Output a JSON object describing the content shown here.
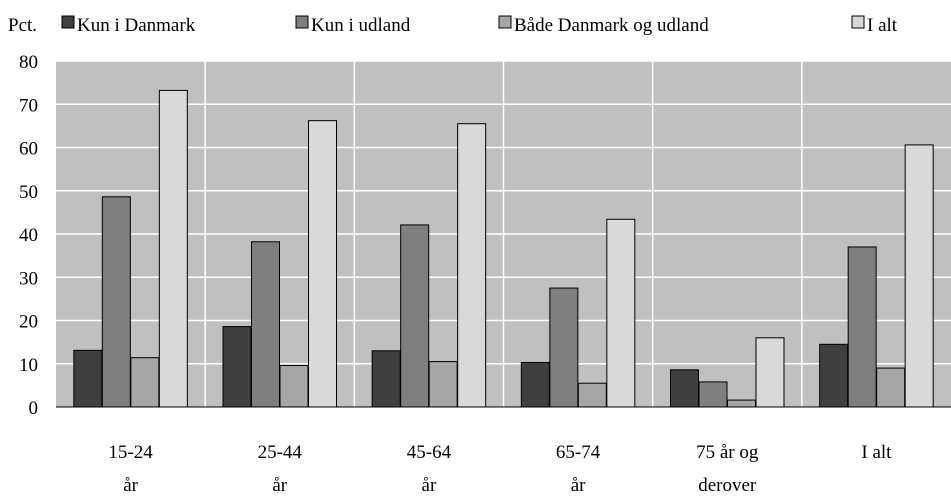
{
  "chart_data": {
    "type": "bar",
    "ylabel": "Pct.",
    "ylim": [
      0,
      80
    ],
    "yticks": [
      0,
      10,
      20,
      30,
      40,
      50,
      60,
      70,
      80
    ],
    "grid": true,
    "legend_position": "top",
    "categories": [
      [
        "15-24",
        "år"
      ],
      [
        "25-44",
        "år"
      ],
      [
        "45-64",
        "år"
      ],
      [
        "65-74",
        "år"
      ],
      [
        "75 år og",
        "derover"
      ],
      [
        "I alt"
      ]
    ],
    "series": [
      {
        "name": "Kun i Danmark",
        "color": "#3f3f3f",
        "values": [
          13.1,
          18.6,
          13.0,
          10.3,
          8.6,
          14.5
        ]
      },
      {
        "name": "Kun i udland",
        "color": "#7f7f7f",
        "values": [
          48.6,
          38.2,
          42.1,
          27.5,
          5.8,
          37.0
        ]
      },
      {
        "name": "Både Danmark og udland",
        "color": "#a6a6a6",
        "values": [
          11.4,
          9.6,
          10.5,
          5.5,
          1.6,
          9.0
        ]
      },
      {
        "name": "I alt",
        "color": "#d9d9d9",
        "values": [
          73.2,
          66.2,
          65.5,
          43.4,
          16.0,
          60.6
        ]
      }
    ]
  },
  "style": {
    "plot_background": "#c0c0c0",
    "gridline_color": "#ffffff",
    "bar_stroke": "#000000"
  }
}
